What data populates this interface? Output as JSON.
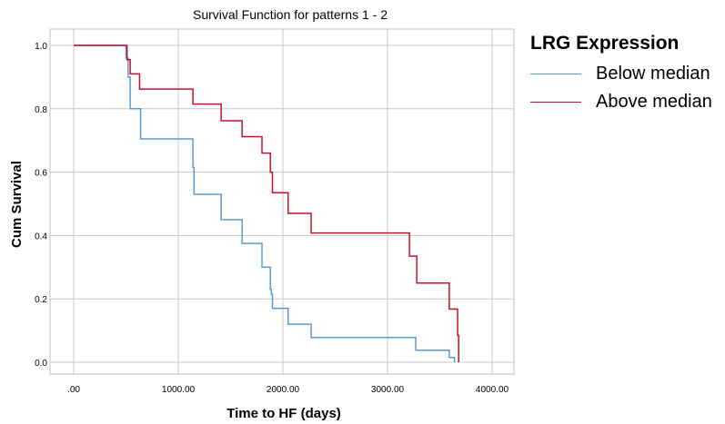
{
  "chart_data": {
    "type": "line",
    "step": true,
    "title": "Survival Function for patterns 1 - 2",
    "xlabel": "Time to HF (days)",
    "ylabel": "Cum Survival",
    "xlim": [
      0,
      4000
    ],
    "ylim": [
      0,
      1.0
    ],
    "x_ticks": [
      0,
      1000,
      2000,
      3000,
      4000
    ],
    "x_tick_labels": [
      ".00",
      "1000.00",
      "2000.00",
      "3000.00",
      "4000.00"
    ],
    "y_ticks": [
      0,
      0.2,
      0.4,
      0.6,
      0.8,
      1.0
    ],
    "y_tick_labels": [
      "0.0",
      "0.2",
      "0.4",
      "0.6",
      "0.8",
      "1.0"
    ],
    "grid": true,
    "legend": {
      "title": "LRG Expression",
      "placement": "right"
    },
    "series": [
      {
        "name": "Below median",
        "color": "#5b9bd5",
        "x": [
          0,
          500,
          520,
          540,
          640,
          1100,
          1140,
          1150,
          1410,
          1610,
          1800,
          1880,
          1890,
          1900,
          2050,
          2270,
          3210,
          3270,
          3590,
          3640
        ],
        "y": [
          1.0,
          0.96,
          0.9,
          0.8,
          0.705,
          0.705,
          0.615,
          0.53,
          0.45,
          0.375,
          0.3,
          0.23,
          0.215,
          0.17,
          0.12,
          0.078,
          0.078,
          0.038,
          0.015,
          0.0
        ]
      },
      {
        "name": "Above median",
        "color": "#c8102e",
        "x": [
          0,
          510,
          540,
          630,
          1100,
          1140,
          1410,
          1610,
          1800,
          1880,
          1900,
          2050,
          2270,
          3210,
          3280,
          3590,
          3670
        ],
        "y": [
          1.0,
          0.955,
          0.91,
          0.862,
          0.862,
          0.815,
          0.762,
          0.712,
          0.66,
          0.6,
          0.535,
          0.47,
          0.408,
          0.335,
          0.25,
          0.168,
          0.085
        ]
      }
    ],
    "x_end": 3680
  }
}
